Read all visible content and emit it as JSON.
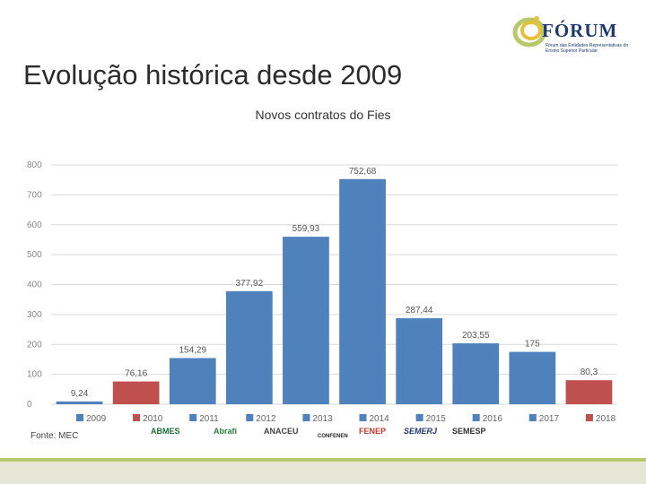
{
  "header": {
    "title": "Evolução histórica desde 2009",
    "logo_text": "FÓRUM",
    "logo_subtitle": "Fórum das Entidades Representativas do Ensino Superior Particular"
  },
  "footer": {
    "source": "Fonte: MEC",
    "partners": [
      "ABMES",
      "Abrafi",
      "ANACEU",
      "CONFENEN",
      "FENEP",
      "SEMERJ",
      "SEMESP"
    ]
  },
  "colors": {
    "blue": "#4f81bd",
    "red": "#c0504d",
    "grid": "#d9d9d9",
    "accent": "#b7c96a"
  },
  "chart_data": {
    "type": "bar",
    "title": "Novos contratos do Fies",
    "categories": [
      "2009",
      "2010",
      "2011",
      "2012",
      "2013",
      "2014",
      "2015",
      "2016",
      "2017",
      "2018"
    ],
    "values": [
      9.24,
      76.16,
      154.29,
      377.92,
      559.93,
      752.68,
      287.44,
      203.55,
      175,
      80.3
    ],
    "data_labels": [
      "9,24",
      "76,16",
      "154,29",
      "377,92",
      "559,93",
      "752,68",
      "287,44",
      "203,55",
      "175",
      "80,3"
    ],
    "bar_colors": [
      "#4f81bd",
      "#c0504d",
      "#4f81bd",
      "#4f81bd",
      "#4f81bd",
      "#4f81bd",
      "#4f81bd",
      "#4f81bd",
      "#4f81bd",
      "#c0504d"
    ],
    "ylim": [
      0,
      800
    ],
    "yticks": [
      0,
      100,
      200,
      300,
      400,
      500,
      600,
      700,
      800
    ],
    "grid": true,
    "legend": "bottom"
  }
}
